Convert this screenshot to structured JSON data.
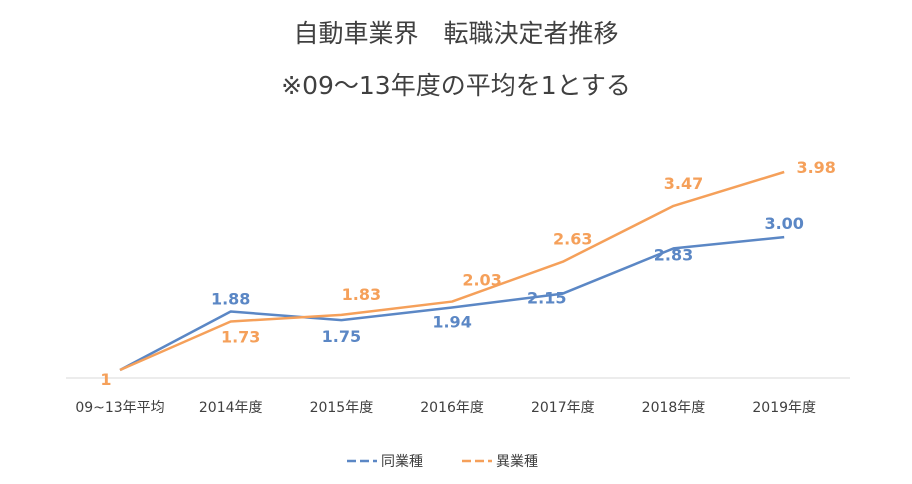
{
  "chart_data": {
    "type": "line",
    "title": "自動車業界　転職決定者推移",
    "subtitle": "※09～13年度の平均を1とする",
    "categories": [
      "09~13年平均",
      "2014年度",
      "2015年度",
      "2016年度",
      "2017年度",
      "2018年度",
      "2019年度"
    ],
    "series": [
      {
        "name": "同業種",
        "color": "#5b87c5",
        "values": [
          1,
          1.88,
          1.75,
          1.94,
          2.15,
          2.83,
          3.0
        ],
        "labels": [
          "",
          "1.88",
          "1.75",
          "1.94",
          "2.15",
          "2.83",
          "3.00"
        ]
      },
      {
        "name": "異業種",
        "color": "#f5a05a",
        "values": [
          1,
          1.73,
          1.83,
          2.03,
          2.63,
          3.47,
          3.98
        ],
        "labels": [
          "1",
          "1.73",
          "1.83",
          "2.03",
          "2.63",
          "3.47",
          "3.98"
        ]
      }
    ],
    "ylim": [
      0.9,
      4.2
    ],
    "grid": false,
    "legend_position": "bottom"
  }
}
